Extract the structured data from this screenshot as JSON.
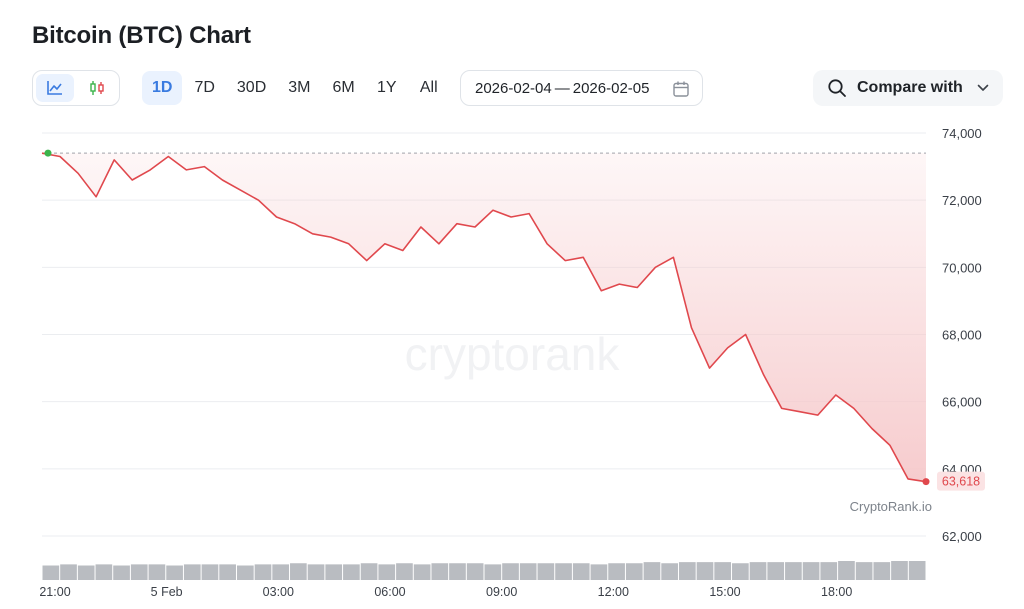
{
  "header": {
    "title": "Bitcoin (BTC) Chart"
  },
  "toolbar": {
    "chart_types": [
      {
        "name": "line-chart-icon",
        "active": true
      },
      {
        "name": "candlestick-icon",
        "active": false
      }
    ],
    "ranges": [
      "1D",
      "7D",
      "30D",
      "3M",
      "6M",
      "1Y",
      "All"
    ],
    "active_range": "1D",
    "date_start": "2026-02-04",
    "date_sep": "—",
    "date_end": "2026-02-05",
    "compare_label": "Compare with"
  },
  "colors": {
    "line": "#e0484d",
    "fill_top": "#f6c9cb",
    "start_dot": "#3cb44b",
    "end_dot": "#e0484d",
    "active_accent": "#3a7be0",
    "grid": "#ebedf0",
    "volume": "#b9bcc1"
  },
  "chart_data": {
    "type": "area",
    "title": "",
    "xlabel": "",
    "ylabel": "",
    "x_ticks": [
      "21:00",
      "5 Feb",
      "03:00",
      "06:00",
      "09:00",
      "12:00",
      "15:00",
      "18:00"
    ],
    "y_ticks": [
      "74,000",
      "72,000",
      "70,000",
      "68,000",
      "66,000",
      "64,000",
      "62,000"
    ],
    "ylim": [
      62000,
      74000
    ],
    "grid": true,
    "reference_price": 73400,
    "last_price": 63618,
    "last_price_label": "63,618",
    "watermark": "cryptorank",
    "source_label": "CryptoRank.io",
    "series": [
      {
        "x": [
          "21:00",
          "21:30",
          "22:00",
          "22:30",
          "23:00",
          "23:30",
          "00:00",
          "00:30",
          "01:00",
          "01:30",
          "02:00",
          "02:30",
          "03:00",
          "03:30",
          "04:00",
          "04:30",
          "05:00",
          "05:30",
          "06:00",
          "06:30",
          "07:00",
          "07:30",
          "08:00",
          "08:30",
          "09:00",
          "09:30",
          "10:00",
          "10:30",
          "11:00",
          "11:30",
          "12:00",
          "12:30",
          "13:00",
          "13:30",
          "14:00",
          "14:30",
          "15:00",
          "15:30",
          "16:00",
          "16:30",
          "17:00",
          "17:30",
          "18:00",
          "18:30",
          "19:00",
          "19:30",
          "20:00",
          "20:15",
          "20:30",
          "20:45"
        ],
        "values": [
          73400,
          73300,
          72800,
          72100,
          73200,
          72600,
          72900,
          73300,
          72900,
          73000,
          72600,
          72300,
          72000,
          71500,
          71300,
          71000,
          70900,
          70700,
          70200,
          70700,
          70500,
          71200,
          70700,
          71300,
          71200,
          71700,
          71500,
          71600,
          70700,
          70200,
          70300,
          69300,
          69500,
          69400,
          70000,
          70300,
          68200,
          67000,
          67600,
          68000,
          66800,
          65800,
          65700,
          65600,
          66200,
          65800,
          65200,
          64700,
          63700,
          63618
        ]
      }
    ],
    "volume": [
      4,
      5,
      4,
      5,
      4,
      5,
      5,
      4,
      5,
      5,
      5,
      4,
      5,
      5,
      6,
      5,
      5,
      5,
      6,
      5,
      6,
      5,
      6,
      6,
      6,
      5,
      6,
      6,
      6,
      6,
      6,
      5,
      6,
      6,
      7,
      6,
      7,
      7,
      7,
      6,
      7,
      7,
      7,
      7,
      7,
      8,
      7,
      7,
      8,
      8
    ]
  }
}
